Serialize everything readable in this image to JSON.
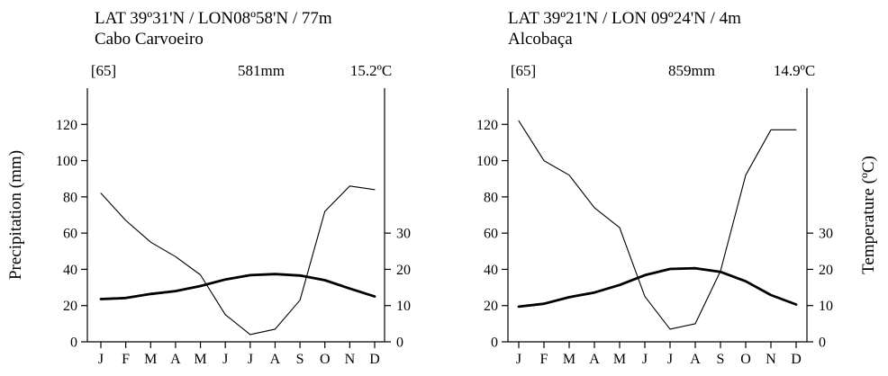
{
  "chart_data": [
    {
      "type": "line",
      "title": "LAT 39º31'N / LON08º58'N / 77m",
      "subtitle": "Cabo Carvoeiro",
      "years": "[65]",
      "annual_precipitation": "581mm",
      "mean_temperature": "15.2ºC",
      "categories": [
        "J",
        "F",
        "M",
        "A",
        "M",
        "J",
        "J",
        "A",
        "S",
        "O",
        "N",
        "D"
      ],
      "ylabel": "Precipitation (mm)",
      "ylim": [
        0,
        140
      ],
      "y_ticks": [
        "0",
        "20",
        "40",
        "60",
        "80",
        "100",
        "120"
      ],
      "y2label": "",
      "y2lim": [
        0,
        70
      ],
      "y2_ticks": [
        "0",
        "10",
        "20",
        "30"
      ],
      "grid": false,
      "series": [
        {
          "axis": "left",
          "color": "#000000",
          "line": "thin",
          "values": [
            82,
            67,
            55,
            47,
            37,
            15,
            4,
            7,
            23,
            72,
            86,
            84
          ]
        },
        {
          "axis": "right",
          "color": "#000000",
          "line": "thick",
          "values": [
            11.8,
            12.1,
            13.2,
            14.0,
            15.4,
            17.2,
            18.4,
            18.7,
            18.3,
            17.0,
            14.7,
            12.5
          ]
        }
      ]
    },
    {
      "type": "line",
      "title": "LAT 39º21'N / LON 09º24'N / 4m",
      "subtitle": "Alcobaça",
      "years": "[65]",
      "annual_precipitation": "859mm",
      "mean_temperature": "14.9ºC",
      "categories": [
        "J",
        "F",
        "M",
        "A",
        "M",
        "J",
        "J",
        "A",
        "S",
        "O",
        "N",
        "D"
      ],
      "ylabel": "",
      "ylim": [
        0,
        140
      ],
      "y_ticks": [
        "0",
        "20",
        "40",
        "60",
        "80",
        "100",
        "120"
      ],
      "y2label": "Temperature (ºC)",
      "y2lim": [
        0,
        70
      ],
      "y2_ticks": [
        "0",
        "10",
        "20",
        "30"
      ],
      "grid": false,
      "series": [
        {
          "axis": "left",
          "color": "#000000",
          "line": "thin",
          "values": [
            122,
            100,
            92,
            74,
            63,
            25,
            7,
            10,
            39,
            92,
            117,
            117
          ]
        },
        {
          "axis": "right",
          "color": "#000000",
          "line": "thick",
          "values": [
            9.7,
            10.5,
            12.3,
            13.6,
            15.7,
            18.4,
            20.1,
            20.3,
            19.3,
            16.7,
            12.9,
            10.3
          ]
        }
      ]
    }
  ]
}
